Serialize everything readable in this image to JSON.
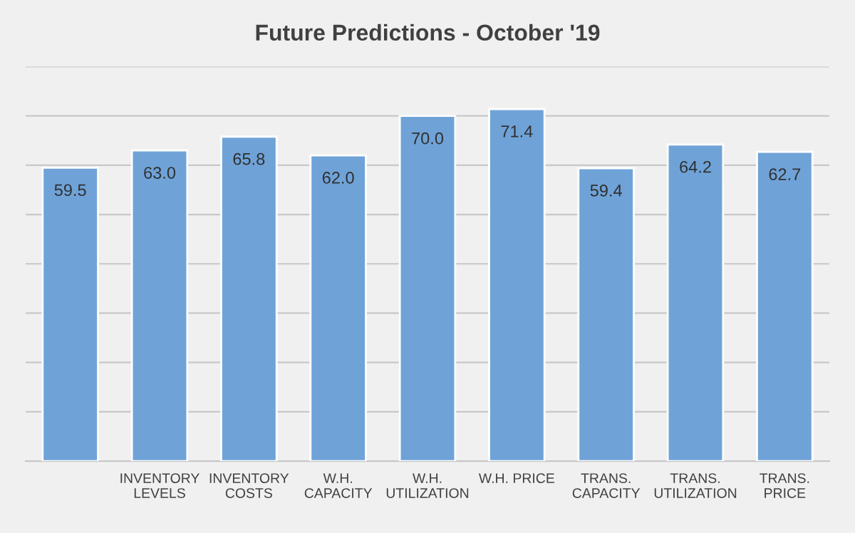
{
  "chart_data": {
    "type": "bar",
    "title": "Future Predictions - October '19",
    "categories": [
      null,
      "INVENTORY\nLEVELS",
      "INVENTORY\nCOSTS",
      "W.H.\nCAPACITY",
      "W.H.\nUTILIZATION",
      "W.H. PRICE",
      "TRANS.\nCAPACITY",
      "TRANS.\nUTILIZATION",
      "TRANS.\nPRICE"
    ],
    "values": [
      59.5,
      63.0,
      65.8,
      62.0,
      70.0,
      71.4,
      59.4,
      64.2,
      62.7
    ],
    "value_labels": [
      "59.5",
      "63.0",
      "65.8",
      "62.0",
      "70.0",
      "71.4",
      "59.4",
      "64.2",
      "62.7"
    ],
    "color": "#6fa3d8",
    "ylim": [
      0,
      80
    ],
    "yticks": [
      {
        "value": 0,
        "label": null
      },
      {
        "value": 10,
        "label": null
      },
      {
        "value": 20,
        "label": null
      },
      {
        "value": 30,
        "label": null
      },
      {
        "value": 40,
        "label": null
      },
      {
        "value": 50,
        "label": null
      },
      {
        "value": 60,
        "label": null
      },
      {
        "value": 70,
        "label": null
      },
      {
        "value": 80,
        "label": null
      }
    ],
    "grid": "y",
    "tick_labels": "x"
  }
}
